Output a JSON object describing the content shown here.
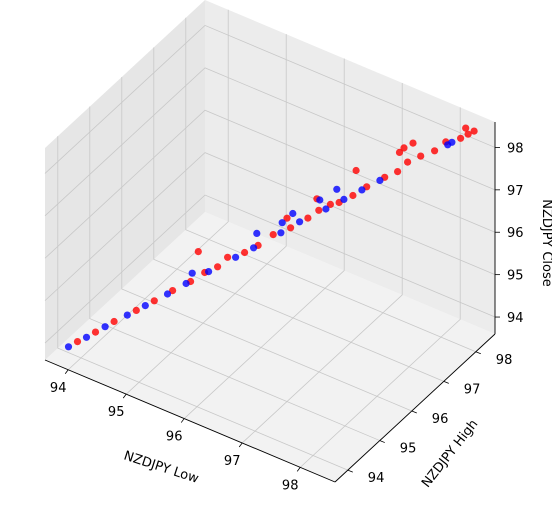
{
  "chart_data": {
    "type": "scatter",
    "projection": "3d",
    "xlabel": "NZDJPY Low",
    "ylabel": "NZDJPY High",
    "zlabel": "NZDJPY Close",
    "xlim": [
      93.6,
      98.6
    ],
    "ylim": [
      93.6,
      98.6
    ],
    "zlim": [
      93.6,
      98.6
    ],
    "xticks": [
      "94",
      "95",
      "96",
      "97",
      "98"
    ],
    "yticks": [
      "94",
      "95",
      "96",
      "97",
      "98"
    ],
    "zticks": [
      "94",
      "95",
      "96",
      "97",
      "98"
    ],
    "grid": true,
    "colors": {
      "up": "#ff0000",
      "down": "#0000ff",
      "pane": "#f2f2f2",
      "grid": "#c8c8c8"
    },
    "series": [
      {
        "color": "red",
        "points": [
          [
            93.95,
            93.98,
            93.97
          ],
          [
            94.15,
            94.18,
            94.17
          ],
          [
            94.35,
            94.4,
            94.38
          ],
          [
            94.6,
            94.64,
            94.62
          ],
          [
            94.8,
            94.84,
            94.82
          ],
          [
            95.0,
            95.05,
            95.03
          ],
          [
            95.2,
            95.25,
            95.22
          ],
          [
            95.35,
            95.42,
            95.4
          ],
          [
            95.5,
            95.55,
            95.53
          ],
          [
            95.6,
            95.68,
            95.72
          ],
          [
            95.8,
            95.85,
            95.83
          ],
          [
            95.95,
            96.0,
            95.98
          ],
          [
            96.1,
            96.2,
            96.18
          ],
          [
            96.3,
            96.38,
            96.33
          ],
          [
            96.5,
            96.56,
            96.55
          ],
          [
            96.6,
            96.72,
            96.68
          ],
          [
            96.85,
            96.9,
            96.88
          ],
          [
            97.0,
            97.06,
            97.02
          ],
          [
            97.15,
            97.22,
            97.2
          ],
          [
            97.35,
            97.42,
            97.4
          ],
          [
            97.5,
            97.55,
            97.53
          ],
          [
            97.6,
            97.68,
            97.72
          ],
          [
            97.75,
            97.82,
            97.85
          ],
          [
            97.9,
            97.98,
            97.95
          ],
          [
            96.55,
            96.75,
            96.9
          ],
          [
            96.2,
            96.45,
            96.45
          ],
          [
            96.95,
            97.25,
            97.45
          ],
          [
            97.45,
            97.7,
            97.85
          ],
          [
            97.6,
            97.85,
            98.05
          ],
          [
            97.5,
            97.75,
            97.95
          ],
          [
            95.25,
            95.4,
            95.85
          ],
          [
            96.7,
            96.9,
            96.75
          ],
          [
            98.2,
            98.25,
            98.23
          ],
          [
            98.28,
            98.34,
            98.31
          ],
          [
            98.35,
            98.4,
            98.38
          ],
          [
            98.25,
            98.32,
            98.45
          ],
          [
            98.0,
            98.15,
            98.1
          ]
        ]
      },
      {
        "color": "blue",
        "points": [
          [
            93.85,
            93.88,
            93.86
          ],
          [
            94.05,
            94.08,
            94.06
          ],
          [
            94.25,
            94.3,
            94.27
          ],
          [
            94.5,
            94.54,
            94.52
          ],
          [
            94.7,
            94.74,
            94.72
          ],
          [
            94.95,
            94.98,
            94.97
          ],
          [
            95.15,
            95.2,
            95.18
          ],
          [
            95.4,
            95.45,
            95.43
          ],
          [
            95.7,
            95.75,
            95.73
          ],
          [
            95.9,
            95.95,
            95.93
          ],
          [
            96.2,
            96.26,
            96.24
          ],
          [
            96.4,
            96.48,
            96.46
          ],
          [
            96.7,
            96.76,
            96.74
          ],
          [
            96.9,
            96.96,
            96.94
          ],
          [
            97.1,
            97.16,
            97.14
          ],
          [
            97.3,
            97.36,
            97.34
          ],
          [
            96.3,
            96.45,
            96.62
          ],
          [
            96.2,
            96.3,
            96.45
          ],
          [
            96.6,
            96.75,
            96.9
          ],
          [
            95.2,
            95.3,
            95.38
          ],
          [
            96.8,
            96.92,
            97.15
          ],
          [
            95.9,
            96.05,
            96.2
          ],
          [
            98.05,
            98.12,
            98.08
          ],
          [
            98.1,
            98.16,
            98.14
          ]
        ]
      }
    ]
  }
}
